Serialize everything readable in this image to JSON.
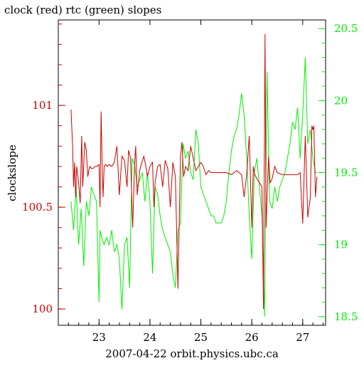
{
  "chart_data": {
    "type": "line",
    "title": "clock (red) rtc (green) slopes",
    "xlabel": "2007-04-22 orbit.physics.ubc.ca",
    "ylabel_left": "clockslope",
    "ylabel_right": "",
    "xlim": [
      22.2,
      27.45
    ],
    "ylim_left": [
      99.92,
      101.42
    ],
    "ylim_right": [
      18.44,
      20.56
    ],
    "x_ticks": [
      23,
      24,
      25,
      26,
      27
    ],
    "x_tick_labels": [
      "23",
      "24",
      "25",
      "26",
      "27"
    ],
    "y_left_ticks": [
      100,
      100.5,
      101
    ],
    "y_left_tick_labels": [
      "100",
      "100.5",
      "101"
    ],
    "y_right_ticks": [
      18.5,
      19,
      19.5,
      20,
      20.5
    ],
    "y_right_tick_labels": [
      "18.5",
      "19",
      "19.5",
      "20",
      "20.5"
    ],
    "grid": false,
    "colors": {
      "clock": "#cc0000",
      "rtc": "#00ee00",
      "axis_left": "#cc0000",
      "axis_right": "#00ee00",
      "frame": "#000000"
    },
    "series": [
      {
        "axis": "left",
        "color": "#cc0000",
        "x": [
          22.45,
          22.48,
          22.5,
          22.52,
          22.54,
          22.56,
          22.6,
          22.63,
          22.66,
          22.68,
          22.72,
          22.75,
          22.78,
          22.8,
          22.82,
          22.85,
          22.88,
          22.92,
          22.96,
          23.0,
          23.02,
          23.04,
          23.06,
          23.08,
          23.1,
          23.13,
          23.16,
          23.2,
          23.25,
          23.3,
          23.35,
          23.4,
          23.45,
          23.5,
          23.55,
          23.58,
          23.62,
          23.66,
          23.7,
          23.72,
          23.75,
          23.8,
          23.84,
          23.88,
          23.92,
          23.95,
          24.0,
          24.05,
          24.08,
          24.1,
          24.15,
          24.2,
          24.25,
          24.3,
          24.35,
          24.4,
          24.45,
          24.5,
          24.55,
          24.6,
          24.63,
          24.66,
          24.7,
          24.75,
          24.8,
          24.86,
          24.9,
          24.95,
          25.0,
          25.05,
          25.1,
          25.15,
          25.2,
          25.3,
          25.4,
          25.5,
          25.6,
          25.7,
          25.8,
          25.85,
          25.9,
          25.95,
          26.0,
          26.03,
          26.06,
          26.1,
          26.15,
          26.2,
          26.23,
          26.26,
          26.28,
          26.3,
          26.33,
          26.36,
          26.4,
          26.45,
          26.5,
          26.6,
          26.7,
          26.8,
          26.9,
          26.95,
          27.0,
          27.05,
          27.1,
          27.15,
          27.18,
          27.2,
          27.22,
          27.25,
          27.28
        ],
        "y": [
          100.98,
          100.8,
          100.6,
          100.72,
          100.55,
          100.7,
          100.62,
          100.52,
          100.85,
          100.6,
          100.82,
          100.78,
          100.65,
          100.68,
          100.7,
          100.69,
          100.69,
          100.7,
          100.7,
          100.71,
          100.5,
          100.97,
          100.72,
          100.55,
          100.7,
          100.71,
          100.7,
          100.71,
          100.7,
          100.72,
          100.8,
          100.56,
          100.75,
          100.73,
          100.6,
          100.78,
          100.74,
          100.4,
          100.72,
          100.8,
          100.56,
          100.68,
          100.72,
          100.75,
          100.7,
          100.65,
          100.7,
          100.72,
          100.5,
          100.62,
          100.7,
          100.71,
          100.6,
          100.73,
          100.69,
          100.5,
          100.72,
          100.65,
          100.1,
          100.75,
          100.82,
          100.65,
          100.7,
          100.68,
          100.8,
          100.73,
          100.68,
          100.7,
          100.72,
          100.7,
          100.66,
          100.68,
          100.67,
          100.67,
          100.67,
          100.67,
          100.66,
          100.68,
          100.66,
          100.55,
          100.66,
          100.85,
          100.4,
          100.7,
          100.66,
          100.64,
          100.62,
          100.6,
          100.0,
          101.35,
          100.4,
          100.55,
          100.75,
          100.62,
          100.64,
          100.7,
          100.67,
          100.66,
          100.66,
          100.66,
          100.66,
          100.67,
          100.42,
          100.85,
          100.45,
          100.55,
          100.9,
          100.88,
          100.9,
          100.55,
          100.65
        ]
      },
      {
        "axis": "right",
        "color": "#00ee00",
        "x": [
          22.45,
          22.5,
          22.55,
          22.6,
          22.65,
          22.7,
          22.75,
          22.8,
          22.85,
          22.9,
          22.95,
          23.0,
          23.02,
          23.05,
          23.1,
          23.15,
          23.2,
          23.25,
          23.3,
          23.35,
          23.4,
          23.45,
          23.5,
          23.55,
          23.6,
          23.65,
          23.7,
          23.75,
          23.8,
          23.85,
          23.9,
          23.95,
          24.0,
          24.05,
          24.1,
          24.15,
          24.2,
          24.25,
          24.3,
          24.35,
          24.4,
          24.45,
          24.5,
          24.55,
          24.6,
          24.65,
          24.7,
          24.75,
          24.8,
          24.85,
          24.9,
          24.95,
          25.0,
          25.05,
          25.1,
          25.15,
          25.2,
          25.25,
          25.3,
          25.35,
          25.4,
          25.45,
          25.5,
          25.55,
          25.6,
          25.65,
          25.7,
          25.75,
          25.8,
          25.85,
          25.9,
          25.95,
          26.0,
          26.05,
          26.1,
          26.15,
          26.2,
          26.25,
          26.3,
          26.35,
          26.4,
          26.45,
          26.5,
          26.55,
          26.6,
          26.65,
          26.7,
          26.75,
          26.8,
          26.85,
          26.9,
          26.95,
          27.0,
          27.05,
          27.1,
          27.15,
          27.2,
          27.25,
          27.28
        ],
        "y": [
          19.3,
          19.1,
          19.4,
          19.0,
          19.25,
          18.85,
          19.3,
          19.2,
          19.4,
          19.35,
          19.3,
          18.6,
          19.1,
          19.05,
          19.0,
          19.05,
          19.0,
          19.1,
          18.95,
          19.0,
          18.9,
          18.55,
          19.0,
          19.05,
          18.7,
          19.6,
          19.55,
          19.4,
          19.45,
          19.5,
          19.3,
          19.5,
          19.3,
          18.8,
          19.4,
          19.35,
          19.2,
          19.1,
          19.05,
          19.0,
          18.95,
          18.8,
          18.7,
          19.1,
          19.15,
          19.7,
          19.6,
          19.65,
          19.5,
          19.45,
          19.8,
          19.7,
          19.4,
          19.35,
          19.3,
          19.25,
          19.2,
          19.2,
          19.15,
          19.15,
          19.15,
          19.2,
          19.3,
          19.5,
          19.65,
          19.75,
          19.8,
          19.9,
          20.05,
          19.9,
          19.6,
          19.2,
          18.9,
          19.5,
          19.6,
          19.4,
          19.2,
          18.5,
          20.2,
          19.3,
          19.25,
          19.4,
          19.3,
          19.4,
          19.45,
          19.5,
          19.6,
          19.7,
          19.85,
          19.8,
          19.95,
          19.6,
          19.9,
          20.3,
          19.7,
          19.8,
          19.6,
          19.5,
          19.5
        ]
      }
    ]
  }
}
